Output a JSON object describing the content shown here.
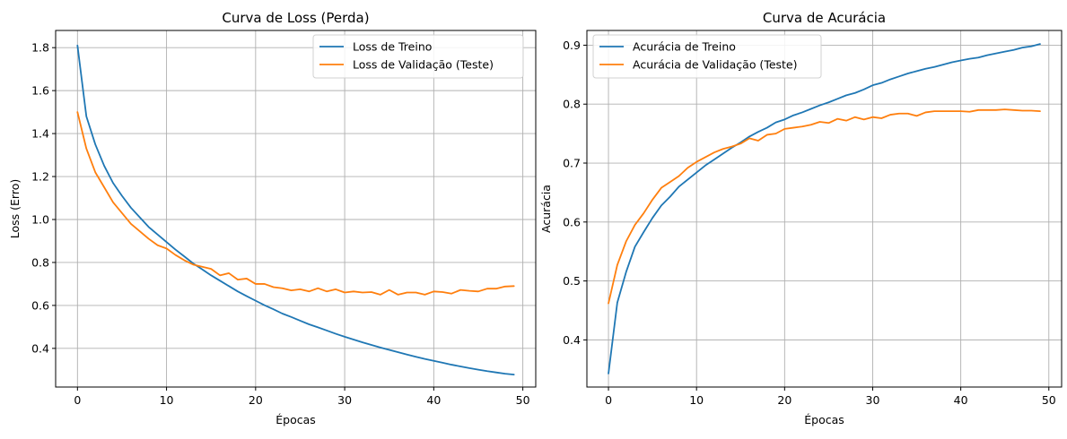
{
  "chart_data": [
    {
      "type": "line",
      "title": "Curva de Loss (Perda)",
      "xlabel": "Épocas",
      "ylabel": "Loss (Erro)",
      "xlim": [
        -2.45,
        51.45
      ],
      "ylim": [
        0.22,
        1.88
      ],
      "xticks": [
        0,
        10,
        20,
        30,
        40,
        50
      ],
      "yticks": [
        0.4,
        0.6,
        0.8,
        1.0,
        1.2,
        1.4,
        1.6,
        1.8
      ],
      "ytick_labels": [
        "0.4",
        "0.6",
        "0.8",
        "1.0",
        "1.2",
        "1.4",
        "1.6",
        "1.8"
      ],
      "grid": true,
      "legend_position": "top-right",
      "series": [
        {
          "name": "Loss de Treino",
          "color": "#1f77b4",
          "x": [
            0,
            1,
            2,
            3,
            4,
            5,
            6,
            7,
            8,
            9,
            10,
            11,
            12,
            13,
            14,
            15,
            16,
            17,
            18,
            19,
            20,
            21,
            22,
            23,
            24,
            25,
            26,
            27,
            28,
            29,
            30,
            31,
            32,
            33,
            34,
            35,
            36,
            37,
            38,
            39,
            40,
            41,
            42,
            43,
            44,
            45,
            46,
            47,
            48,
            49
          ],
          "values": [
            1.81,
            1.48,
            1.35,
            1.25,
            1.17,
            1.11,
            1.055,
            1.01,
            0.965,
            0.93,
            0.895,
            0.86,
            0.828,
            0.795,
            0.768,
            0.74,
            0.715,
            0.69,
            0.665,
            0.643,
            0.622,
            0.601,
            0.582,
            0.562,
            0.546,
            0.529,
            0.512,
            0.498,
            0.483,
            0.468,
            0.454,
            0.441,
            0.428,
            0.416,
            0.404,
            0.393,
            0.382,
            0.371,
            0.361,
            0.351,
            0.342,
            0.333,
            0.324,
            0.316,
            0.308,
            0.301,
            0.294,
            0.288,
            0.282,
            0.278
          ]
        },
        {
          "name": "Loss de Validação (Teste)",
          "color": "#ff7f0e",
          "x": [
            0,
            1,
            2,
            3,
            4,
            5,
            6,
            7,
            8,
            9,
            10,
            11,
            12,
            13,
            14,
            15,
            16,
            17,
            18,
            19,
            20,
            21,
            22,
            23,
            24,
            25,
            26,
            27,
            28,
            29,
            30,
            31,
            32,
            33,
            34,
            35,
            36,
            37,
            38,
            39,
            40,
            41,
            42,
            43,
            44,
            45,
            46,
            47,
            48,
            49
          ],
          "values": [
            1.5,
            1.33,
            1.22,
            1.15,
            1.08,
            1.03,
            0.98,
            0.945,
            0.91,
            0.88,
            0.865,
            0.835,
            0.81,
            0.79,
            0.78,
            0.77,
            0.74,
            0.75,
            0.72,
            0.725,
            0.7,
            0.7,
            0.685,
            0.68,
            0.67,
            0.675,
            0.665,
            0.68,
            0.665,
            0.675,
            0.66,
            0.665,
            0.66,
            0.662,
            0.65,
            0.672,
            0.65,
            0.66,
            0.66,
            0.65,
            0.665,
            0.662,
            0.655,
            0.672,
            0.668,
            0.665,
            0.678,
            0.678,
            0.688,
            0.69
          ]
        }
      ]
    },
    {
      "type": "line",
      "title": "Curva de Acurácia",
      "xlabel": "Épocas",
      "ylabel": "Acurácia",
      "xlim": [
        -2.45,
        51.45
      ],
      "ylim": [
        0.32,
        0.925
      ],
      "xticks": [
        0,
        10,
        20,
        30,
        40,
        50
      ],
      "yticks": [
        0.4,
        0.5,
        0.6,
        0.7,
        0.8,
        0.9
      ],
      "ytick_labels": [
        "0.4",
        "0.5",
        "0.6",
        "0.7",
        "0.8",
        "0.9"
      ],
      "grid": true,
      "legend_position": "top-left",
      "series": [
        {
          "name": "Acurácia de Treino",
          "color": "#1f77b4",
          "x": [
            0,
            1,
            2,
            3,
            4,
            5,
            6,
            7,
            8,
            9,
            10,
            11,
            12,
            13,
            14,
            15,
            16,
            17,
            18,
            19,
            20,
            21,
            22,
            23,
            24,
            25,
            26,
            27,
            28,
            29,
            30,
            31,
            32,
            33,
            34,
            35,
            36,
            37,
            38,
            39,
            40,
            41,
            42,
            43,
            44,
            45,
            46,
            47,
            48,
            49
          ],
          "values": [
            0.343,
            0.463,
            0.515,
            0.558,
            0.583,
            0.607,
            0.628,
            0.643,
            0.66,
            0.672,
            0.684,
            0.696,
            0.706,
            0.716,
            0.726,
            0.735,
            0.745,
            0.753,
            0.76,
            0.769,
            0.774,
            0.781,
            0.786,
            0.792,
            0.798,
            0.803,
            0.809,
            0.815,
            0.819,
            0.825,
            0.832,
            0.836,
            0.842,
            0.847,
            0.852,
            0.856,
            0.86,
            0.863,
            0.867,
            0.871,
            0.874,
            0.877,
            0.879,
            0.883,
            0.886,
            0.889,
            0.892,
            0.896,
            0.898,
            0.902
          ]
        },
        {
          "name": "Acurácia de Validação (Teste)",
          "color": "#ff7f0e",
          "x": [
            0,
            1,
            2,
            3,
            4,
            5,
            6,
            7,
            8,
            9,
            10,
            11,
            12,
            13,
            14,
            15,
            16,
            17,
            18,
            19,
            20,
            21,
            22,
            23,
            24,
            25,
            26,
            27,
            28,
            29,
            30,
            31,
            32,
            33,
            34,
            35,
            36,
            37,
            38,
            39,
            40,
            41,
            42,
            43,
            44,
            45,
            46,
            47,
            48,
            49
          ],
          "values": [
            0.462,
            0.527,
            0.567,
            0.595,
            0.615,
            0.638,
            0.658,
            0.668,
            0.678,
            0.692,
            0.702,
            0.71,
            0.718,
            0.724,
            0.728,
            0.733,
            0.742,
            0.738,
            0.748,
            0.75,
            0.758,
            0.76,
            0.762,
            0.765,
            0.77,
            0.768,
            0.775,
            0.772,
            0.778,
            0.774,
            0.778,
            0.776,
            0.782,
            0.784,
            0.784,
            0.78,
            0.786,
            0.788,
            0.788,
            0.788,
            0.788,
            0.787,
            0.79,
            0.79,
            0.79,
            0.791,
            0.79,
            0.789,
            0.789,
            0.788
          ]
        }
      ]
    }
  ]
}
